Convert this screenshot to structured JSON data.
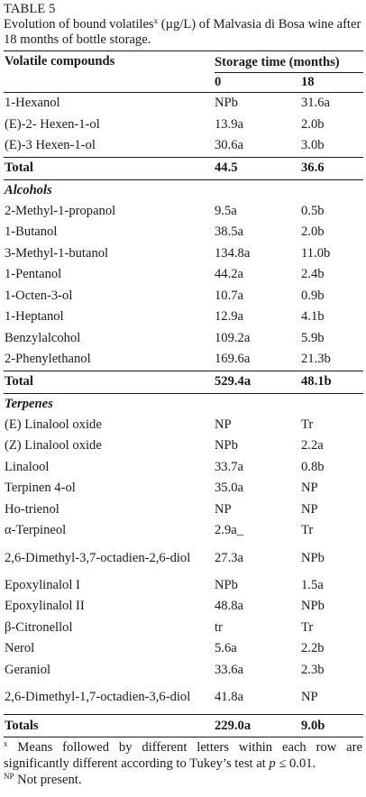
{
  "table": {
    "label": "TABLE 5",
    "caption": {
      "before": "Evolution of bound volatiles",
      "sup": "x",
      "after": " (µg/L) of Malvasia di Bosa wine after 18 months of bottle storage."
    },
    "header": {
      "compounds": "Volatile compounds",
      "storage": "Storage time (months)",
      "col0": "0",
      "col18": "18"
    },
    "rows": [
      {
        "type": "row",
        "name": "1-Hexanol",
        "v0": "NPb",
        "v18": "31.6a"
      },
      {
        "type": "row",
        "name": "(E)-2- Hexen-1-ol",
        "v0": "13.9a",
        "v18": "2.0b"
      },
      {
        "type": "row",
        "name": "(E)-3 Hexen-1-ol",
        "v0": "30.6a",
        "v18": "3.0b"
      },
      {
        "type": "total",
        "name": "Total",
        "v0": "44.5",
        "v18": "36.6"
      },
      {
        "type": "section",
        "name": "Alcohols",
        "v0": "",
        "v18": ""
      },
      {
        "type": "row",
        "name": "2-Methyl-1-propanol",
        "v0": "9.5a",
        "v18": "0.5b"
      },
      {
        "type": "row",
        "name": "1-Butanol",
        "v0": "38.5a",
        "v18": "2.0b"
      },
      {
        "type": "row",
        "name": "3-Methyl-1-butanol",
        "v0": "134.8a",
        "v18": "11.0b"
      },
      {
        "type": "row",
        "name": "1-Pentanol",
        "v0": "44.2a",
        "v18": "2.4b"
      },
      {
        "type": "row",
        "name": "1-Octen-3-ol",
        "v0": "10.7a",
        "v18": "0.9b"
      },
      {
        "type": "row",
        "name": "1-Heptanol",
        "v0": "12.9a",
        "v18": "4.1b"
      },
      {
        "type": "row",
        "name": "Benzylalcohol",
        "v0": "109.2a",
        "v18": "5.9b"
      },
      {
        "type": "row",
        "name": "2-Phenylethanol",
        "v0": "169.6a",
        "v18": "21.3b"
      },
      {
        "type": "total",
        "name": "Total",
        "v0": "529.4a",
        "v18": "48.1b"
      },
      {
        "type": "section",
        "name": "Terpenes",
        "v0": "",
        "v18": ""
      },
      {
        "type": "row",
        "name": "(E) Linalool oxide",
        "v0": "NP",
        "v18": "Tr"
      },
      {
        "type": "row",
        "name": "(Z) Linalool oxide",
        "v0": "NPb",
        "v18": "2.2a"
      },
      {
        "type": "row",
        "name": "Linalool",
        "v0": "33.7a",
        "v18": "0.8b"
      },
      {
        "type": "row",
        "name": "Terpinen 4-ol",
        "v0": "35.0a",
        "v18": "NP"
      },
      {
        "type": "row",
        "name": "Ho-trienol",
        "v0": "NP",
        "v18": "NP"
      },
      {
        "type": "row",
        "name": "α-Terpineol",
        "v0": "2.9a_",
        "v18": "Tr"
      },
      {
        "type": "row2",
        "name": "2,6-Dimethyl-3,7-octadien-2,6-diol",
        "v0": "27.3a",
        "v18": "NPb"
      },
      {
        "type": "row",
        "name": "Epoxylinalol I",
        "v0": "NPb",
        "v18": "1.5a"
      },
      {
        "type": "row",
        "name": "Epoxylinalol II",
        "v0": "48.8a",
        "v18": "NPb"
      },
      {
        "type": "row",
        "name": "β-Citronellol",
        "v0": "tr",
        "v18": "Tr"
      },
      {
        "type": "row",
        "name": "Nerol",
        "v0": "5.6a",
        "v18": "2.2b"
      },
      {
        "type": "row",
        "name": "Geraniol",
        "v0": "33.6a",
        "v18": "2.3b"
      },
      {
        "type": "row2",
        "name": "2,6-Dimethyl-1,7-octadien-3,6-diol",
        "v0": "41.8a",
        "v18": "NP"
      },
      {
        "type": "totals",
        "name": "Totals",
        "v0": "229.0a",
        "v18": "9.0b"
      }
    ],
    "footnotes": {
      "x_sup": "x",
      "x_text_before": " Means followed by different letters within each row are significantly different according to Tukey’s test at ",
      "x_p": "p",
      "x_text_after": " ≤ 0.01.",
      "np_sup": "NP",
      "np_text": " Not present."
    }
  }
}
